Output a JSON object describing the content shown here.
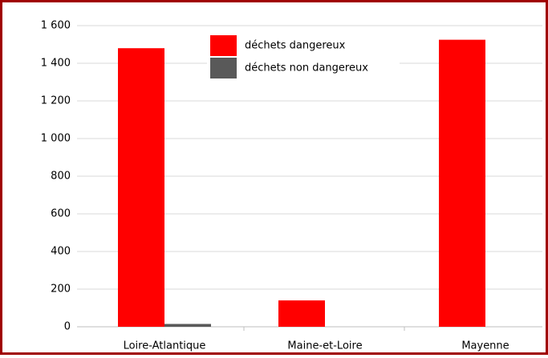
{
  "chart_data": {
    "type": "bar",
    "categories": [
      "Loire-Atlantique",
      "Maine-et-Loire",
      "Mayenne"
    ],
    "series": [
      {
        "name": "déchets dangereux",
        "color": "#ff0000",
        "values": [
          1480,
          140,
          1525
        ]
      },
      {
        "name": "déchets non dangereux",
        "color": "#595959",
        "values": [
          15,
          0,
          0
        ]
      }
    ],
    "ylim": [
      0,
      1600
    ],
    "yticks": [
      0,
      200,
      400,
      600,
      800,
      {
        "value": 1000,
        "label": "1 000"
      },
      {
        "value": 1200,
        "label": "1 200"
      },
      {
        "value": 1400,
        "label": "1 400"
      },
      {
        "value": 1600,
        "label": "1 600"
      }
    ],
    "grid": true
  }
}
